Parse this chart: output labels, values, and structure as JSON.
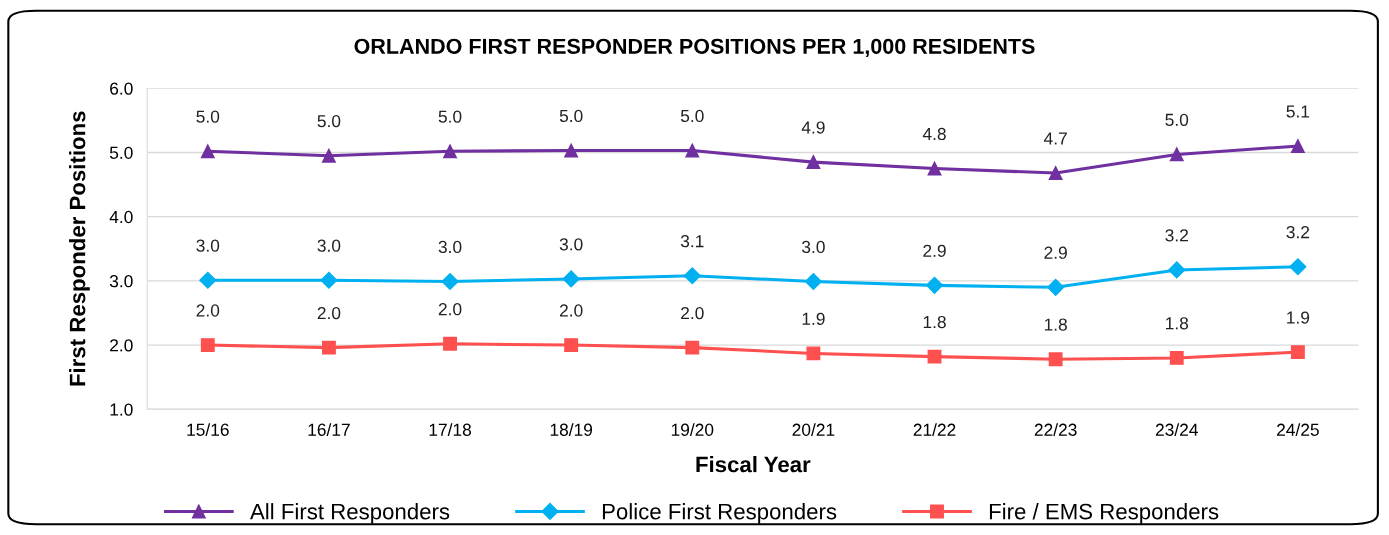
{
  "chart_data": {
    "type": "line",
    "title": "ORLANDO FIRST RESPONDER POSITIONS PER 1,000 RESIDENTS",
    "xlabel": "Fiscal Year",
    "ylabel": "First Responder Positions",
    "categories": [
      "15/16",
      "16/17",
      "17/18",
      "18/19",
      "19/20",
      "20/21",
      "21/22",
      "22/23",
      "23/24",
      "24/25"
    ],
    "series": [
      {
        "name": "All First Responders",
        "color": "#7030a0",
        "marker": "triangle",
        "values": [
          5.02,
          4.95,
          5.02,
          5.03,
          5.03,
          4.85,
          4.75,
          4.68,
          4.97,
          5.1
        ],
        "value_labels": [
          "5.0",
          "5.0",
          "5.0",
          "5.0",
          "5.0",
          "4.9",
          "4.8",
          "4.7",
          "5.0",
          "5.1"
        ]
      },
      {
        "name": "Police First Responders",
        "color": "#00b0f0",
        "marker": "diamond",
        "values": [
          3.01,
          3.01,
          2.99,
          3.03,
          3.08,
          2.99,
          2.93,
          2.9,
          3.17,
          3.22
        ],
        "value_labels": [
          "3.0",
          "3.0",
          "3.0",
          "3.0",
          "3.1",
          "3.0",
          "2.9",
          "2.9",
          "3.2",
          "3.2"
        ]
      },
      {
        "name": "Fire / EMS Responders",
        "color": "#ff5050",
        "marker": "square",
        "values": [
          2.0,
          1.96,
          2.02,
          2.0,
          1.96,
          1.87,
          1.82,
          1.78,
          1.8,
          1.89
        ],
        "value_labels": [
          "2.0",
          "2.0",
          "2.0",
          "2.0",
          "2.0",
          "1.9",
          "1.8",
          "1.8",
          "1.8",
          "1.9"
        ]
      }
    ],
    "ylim": [
      1,
      6
    ],
    "yticks": [
      {
        "value": 1,
        "label": "1.0"
      },
      {
        "value": 2,
        "label": "2.0"
      },
      {
        "value": 3,
        "label": "3.0"
      },
      {
        "value": 4,
        "label": "4.0"
      },
      {
        "value": 5,
        "label": "5.0"
      },
      {
        "value": 6,
        "label": "6.0"
      }
    ],
    "grid": "y",
    "legend": "bottom",
    "line_style": "solid"
  }
}
